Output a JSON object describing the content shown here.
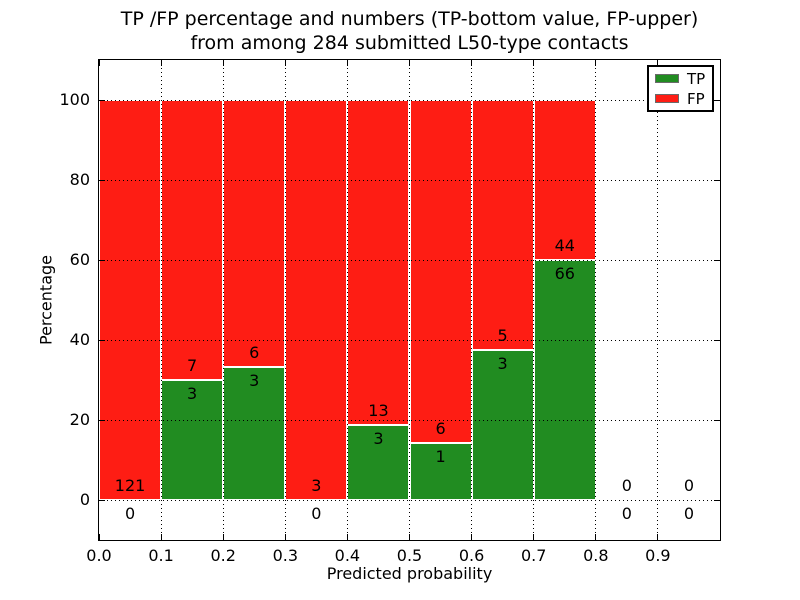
{
  "title": {
    "line1": "TP /FP percentage and numbers (TP-bottom value, FP-upper)",
    "line2": "from among 284 submitted L50-type contacts"
  },
  "axes": {
    "xlabel": "Predicted probability",
    "ylabel": "Percentage"
  },
  "legend": {
    "items": [
      {
        "label": "TP",
        "color": "#218c21"
      },
      {
        "label": "FP",
        "color": "#fe1d14"
      }
    ]
  },
  "chart_data": {
    "type": "bar",
    "variant": "stacked-percentage",
    "title": "TP /FP percentage and numbers (TP-bottom value, FP-upper) from among 284 submitted L50-type contacts",
    "xlabel": "Predicted probability",
    "ylabel": "Percentage",
    "total_submitted": 284,
    "xlim": [
      0.0,
      1.0
    ],
    "ylim": [
      -10,
      110
    ],
    "bar_width": 0.1,
    "xtick_labels": [
      "0.0",
      "0.1",
      "0.2",
      "0.3",
      "0.4",
      "0.5",
      "0.6",
      "0.7",
      "0.8",
      "0.9"
    ],
    "ytick_values": [
      0,
      20,
      40,
      60,
      80,
      100
    ],
    "grid": {
      "style": "dotted",
      "drawn_over_bars": true
    },
    "legend_position": "upper right",
    "colors": {
      "tp": "#218c21",
      "fp": "#fe1d14"
    },
    "series": [
      {
        "name": "TP",
        "color": "#218c21",
        "counts": [
          0,
          3,
          3,
          0,
          3,
          1,
          3,
          66,
          0,
          0
        ]
      },
      {
        "name": "FP",
        "color": "#fe1d14",
        "counts": [
          121,
          7,
          6,
          3,
          13,
          6,
          5,
          44,
          0,
          0
        ]
      }
    ],
    "bins": [
      {
        "range": "0.0-0.1",
        "x_start": 0.0,
        "tp": 0,
        "fp": 121,
        "tp_percent": 0
      },
      {
        "range": "0.1-0.2",
        "x_start": 0.1,
        "tp": 3,
        "fp": 7,
        "tp_percent": 30
      },
      {
        "range": "0.2-0.3",
        "x_start": 0.2,
        "tp": 3,
        "fp": 6,
        "tp_percent": 33.33
      },
      {
        "range": "0.3-0.4",
        "x_start": 0.3,
        "tp": 0,
        "fp": 3,
        "tp_percent": 0
      },
      {
        "range": "0.4-0.5",
        "x_start": 0.4,
        "tp": 3,
        "fp": 13,
        "tp_percent": 18.75
      },
      {
        "range": "0.5-0.6",
        "x_start": 0.5,
        "tp": 1,
        "fp": 6,
        "tp_percent": 14.29
      },
      {
        "range": "0.6-0.7",
        "x_start": 0.6,
        "tp": 3,
        "fp": 5,
        "tp_percent": 37.5
      },
      {
        "range": "0.7-0.8",
        "x_start": 0.7,
        "tp": 66,
        "fp": 44,
        "tp_percent": 60
      },
      {
        "range": "0.8-0.9",
        "x_start": 0.8,
        "tp": 0,
        "fp": 0,
        "tp_percent": null
      },
      {
        "range": "0.9-1.0",
        "x_start": 0.9,
        "tp": 0,
        "fp": 0,
        "tp_percent": null
      }
    ]
  }
}
